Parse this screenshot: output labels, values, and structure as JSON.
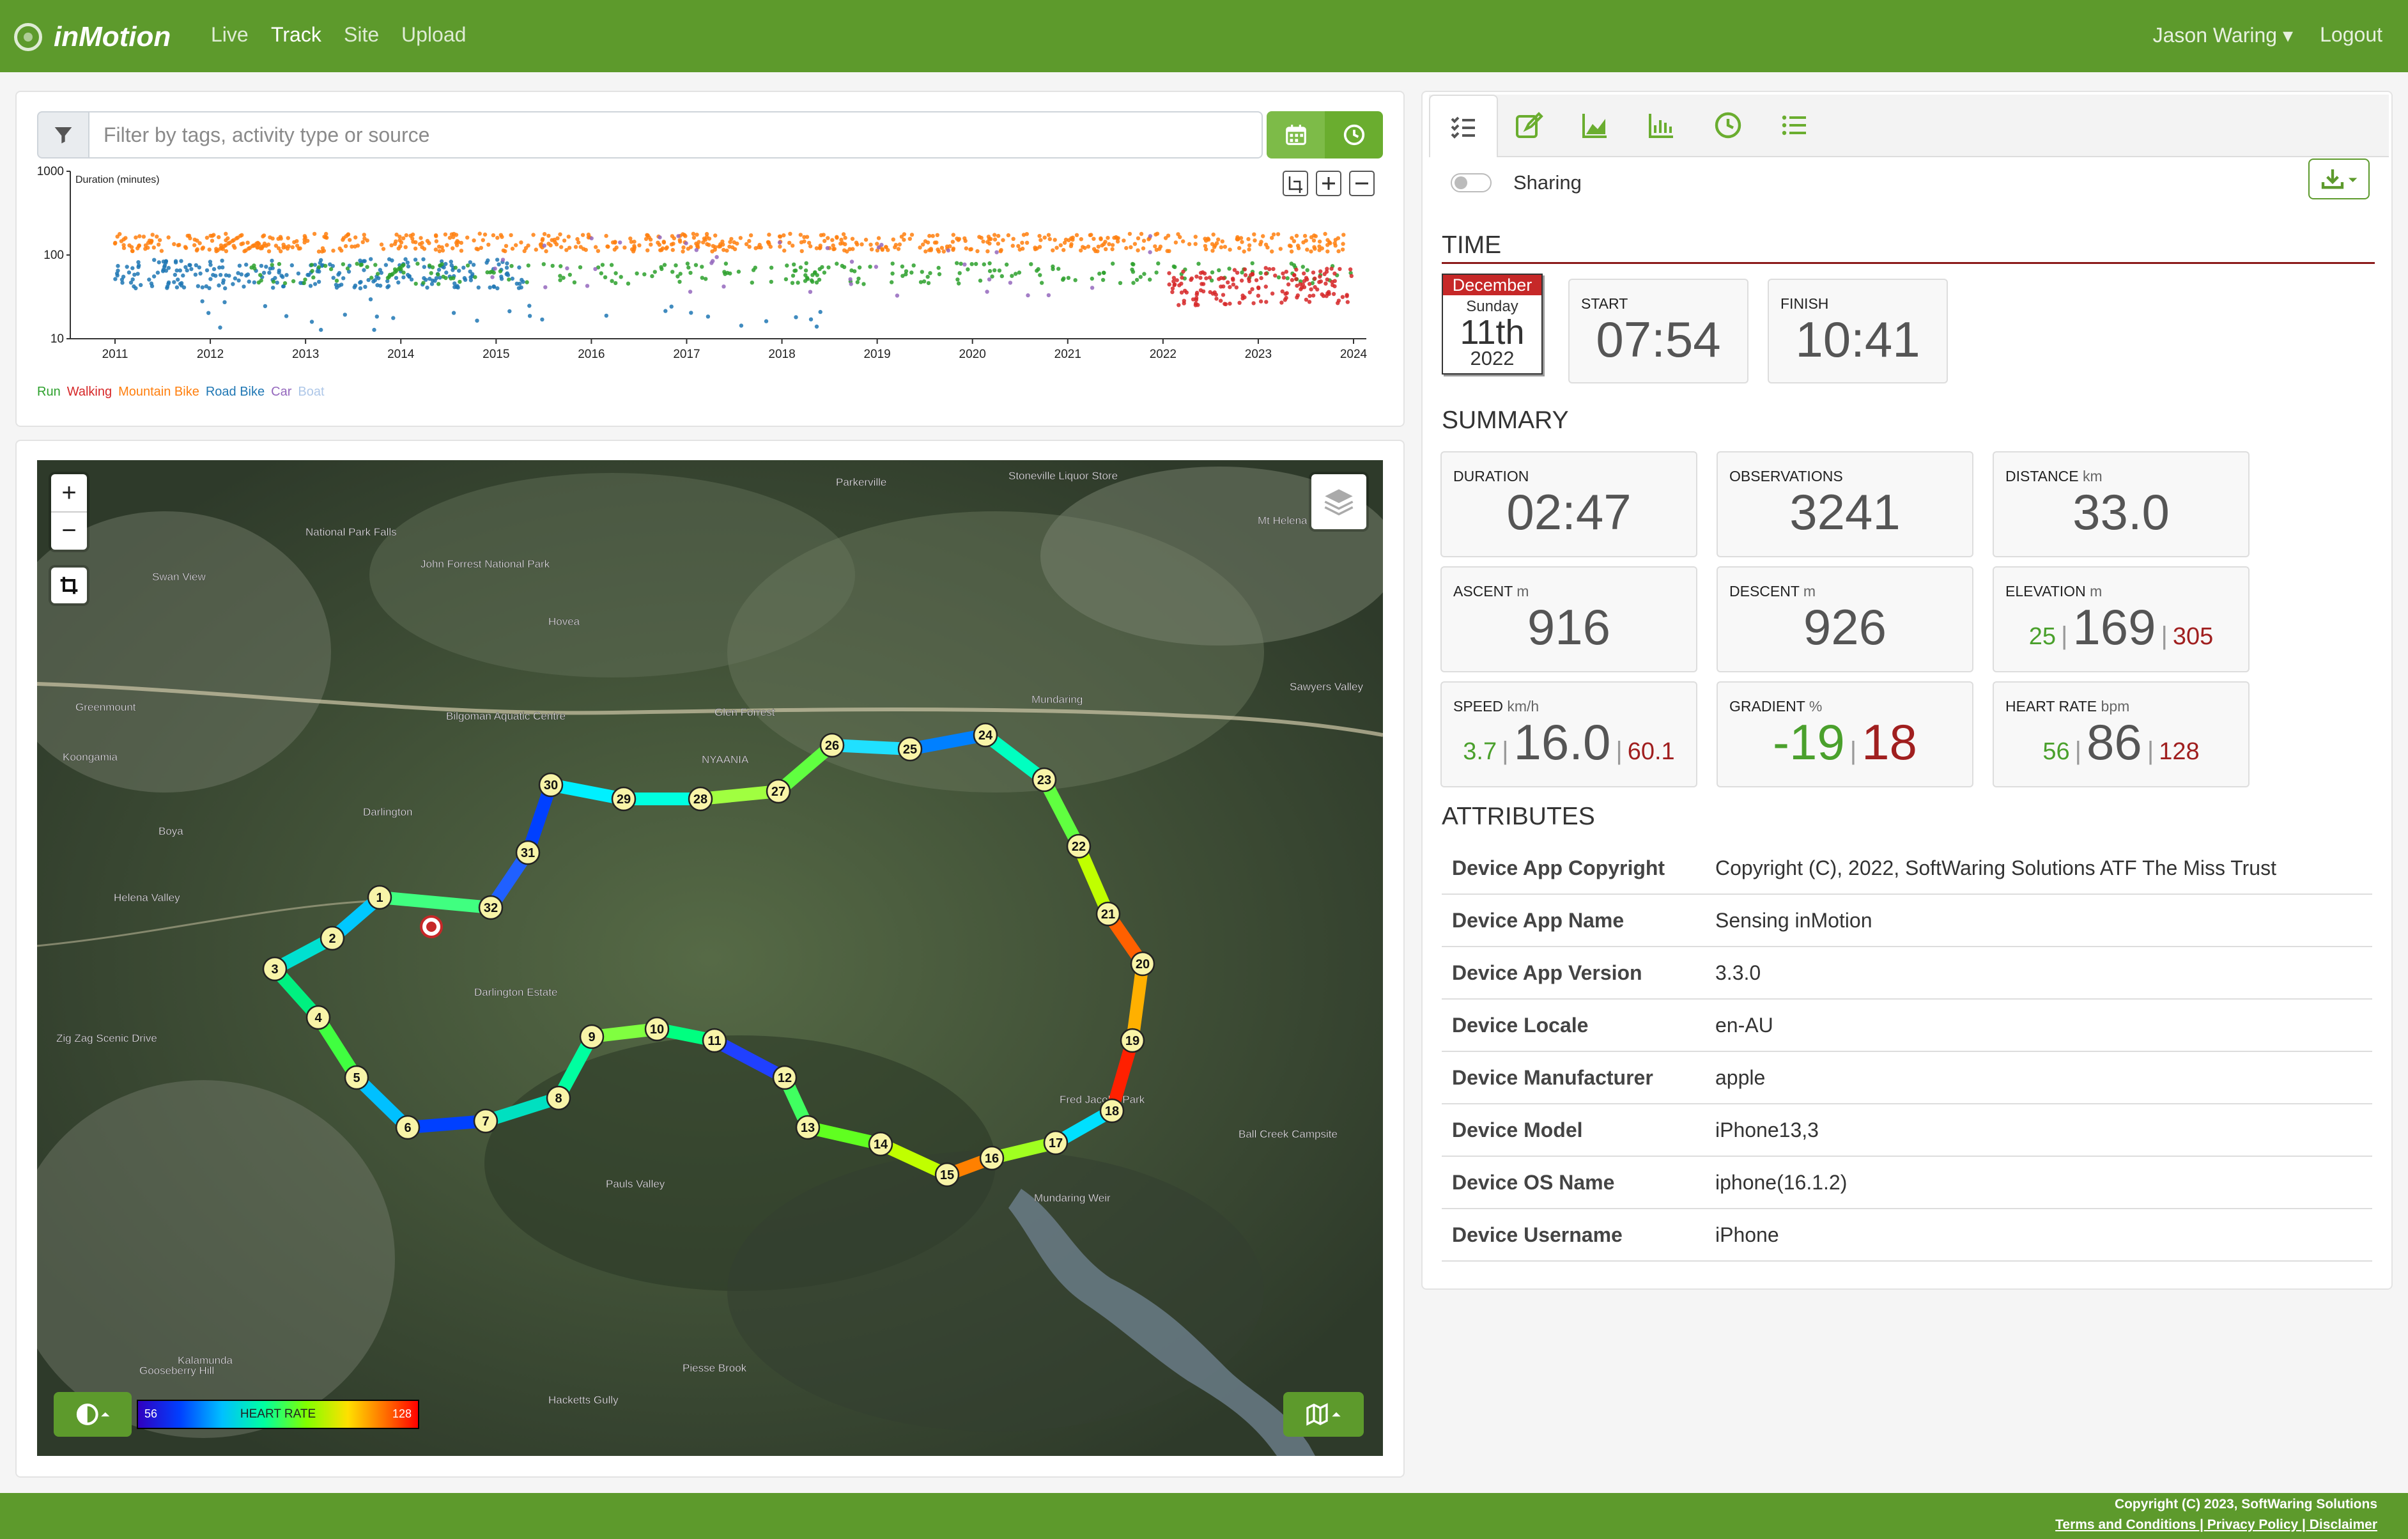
{
  "app": {
    "brand": "inMotion"
  },
  "nav": {
    "live": "Live",
    "track": "Track",
    "site": "Site",
    "upload": "Upload",
    "user": "Jason Waring ▾",
    "logout": "Logout"
  },
  "filter": {
    "placeholder": "Filter by tags, activity type or source"
  },
  "chart_data": {
    "type": "scatter",
    "ylabel": "Duration (minutes)",
    "y_scale": "log",
    "ylim": [
      10,
      1000
    ],
    "y_ticks": [
      "1000",
      "100",
      "10"
    ],
    "x_ticks": [
      "2011",
      "2012",
      "2013",
      "2014",
      "2015",
      "2016",
      "2017",
      "2018",
      "2019",
      "2020",
      "2021",
      "2022",
      "2023",
      "2024"
    ],
    "series": [
      {
        "name": "Run",
        "color": "#2ca02c"
      },
      {
        "name": "Walking",
        "color": "#d62728"
      },
      {
        "name": "Mountain Bike",
        "color": "#ff7f0e"
      },
      {
        "name": "Road Bike",
        "color": "#1f77b4"
      },
      {
        "name": "Car",
        "color": "#9467bd"
      },
      {
        "name": "Boat",
        "color": "#aec7e8"
      }
    ]
  },
  "map": {
    "zoom_in": "+",
    "zoom_out": "−",
    "heart_rate_label": "HEART RATE",
    "heart_rate_min": "56",
    "heart_rate_max": "128",
    "waypoints": [
      "1",
      "2",
      "3",
      "4",
      "5",
      "6",
      "7",
      "8",
      "9",
      "10",
      "11",
      "12",
      "13",
      "14",
      "15",
      "16",
      "17",
      "18",
      "19",
      "20",
      "21",
      "22",
      "23",
      "24",
      "25",
      "26",
      "27",
      "28",
      "29",
      "30",
      "31",
      "32"
    ],
    "places": [
      "National Park Falls",
      "John Forrest National Park",
      "Swan View",
      "Parkerville",
      "Stoneville Liquor Store",
      "Glen Forrest",
      "Bilgoman Aquatic Centre",
      "Mundaring",
      "Sawyers Valley",
      "Darlington",
      "Helena Valley",
      "Boya",
      "Koongamia",
      "Greenmount",
      "Darlington Estate",
      "Pauls Valley",
      "Gooseberry Hill",
      "Kalamunda",
      "Hacketts Gully",
      "Piesse Brook",
      "Mundaring Weir",
      "Ball Creek Campsite",
      "Zig Zag Scenic Drive",
      "Hovea",
      "NYAANIA",
      "Mt Helena",
      "Fred Jacoby Park"
    ]
  },
  "tabs": [
    "details",
    "edit",
    "elevation",
    "histogram",
    "time",
    "list"
  ],
  "sharing": {
    "label": "Sharing"
  },
  "time": {
    "heading": "TIME",
    "month": "December",
    "weekday": "Sunday",
    "day": "11th",
    "year": "2022",
    "start_label": "START",
    "start": "07:54",
    "finish_label": "FINISH",
    "finish": "10:41"
  },
  "summary": {
    "heading": "SUMMARY",
    "duration": {
      "label": "DURATION",
      "value": "02:47"
    },
    "observations": {
      "label": "OBSERVATIONS",
      "value": "3241"
    },
    "distance": {
      "label": "DISTANCE",
      "unit": "km",
      "value": "33.0"
    },
    "ascent": {
      "label": "ASCENT",
      "unit": "m",
      "value": "916"
    },
    "descent": {
      "label": "DESCENT",
      "unit": "m",
      "value": "926"
    },
    "elevation": {
      "label": "ELEVATION",
      "unit": "m",
      "min": "25",
      "value": "169",
      "max": "305"
    },
    "speed": {
      "label": "SPEED",
      "unit": "km/h",
      "min": "3.7",
      "value": "16.0",
      "max": "60.1"
    },
    "gradient": {
      "label": "GRADIENT",
      "unit": "%",
      "min": "-19",
      "max": "18"
    },
    "heart_rate": {
      "label": "HEART RATE",
      "unit": "bpm",
      "min": "56",
      "value": "86",
      "max": "128"
    }
  },
  "attributes": {
    "heading": "ATTRIBUTES",
    "rows": [
      {
        "key": "Device App Copyright",
        "value": "Copyright (C), 2022, SoftWaring Solutions ATF The Miss Trust"
      },
      {
        "key": "Device App Name",
        "value": "Sensing inMotion"
      },
      {
        "key": "Device App Version",
        "value": "3.3.0"
      },
      {
        "key": "Device Locale",
        "value": "en-AU"
      },
      {
        "key": "Device Manufacturer",
        "value": "apple"
      },
      {
        "key": "Device Model",
        "value": "iPhone13,3"
      },
      {
        "key": "Device OS Name",
        "value": "iphone(16.1.2)"
      },
      {
        "key": "Device Username",
        "value": "iPhone"
      }
    ]
  },
  "footer": {
    "copyright": "Copyright (C) 2023, SoftWaring Solutions",
    "links": "Terms and Conditions | Privacy Policy | Disclaimer"
  }
}
